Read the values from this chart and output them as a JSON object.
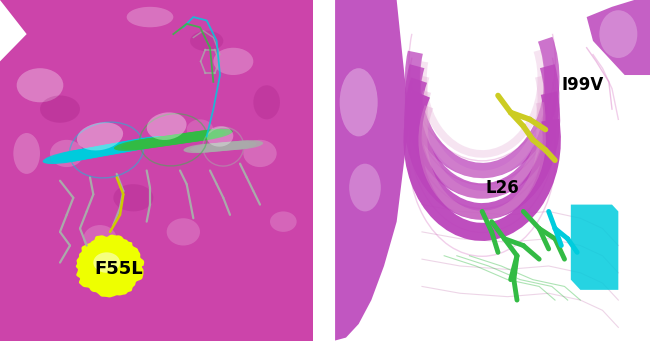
{
  "figsize": [
    6.5,
    3.41
  ],
  "dpi": 100,
  "left": {
    "surface_color": "#CC44AA",
    "highlight_color": "#EEFF00",
    "highlight_label": "F55L",
    "label_fontsize": 13,
    "cyan_color": "#00CCDD",
    "green_color": "#33BB44",
    "gray_color": "#AAAAAA",
    "yellow_color": "#CCCC00"
  },
  "right": {
    "helix_color": "#BB44BB",
    "helix_inner_color": "#DD99CC",
    "helix_thin_color": "#DD88CC",
    "yellow_color": "#CCCC22",
    "green_color": "#33BB44",
    "cyan_color": "#00CCDD",
    "mauve_color": "#CC88BB",
    "label_i99v": "I99V",
    "label_l26": "L26",
    "label_fontsize": 12
  }
}
